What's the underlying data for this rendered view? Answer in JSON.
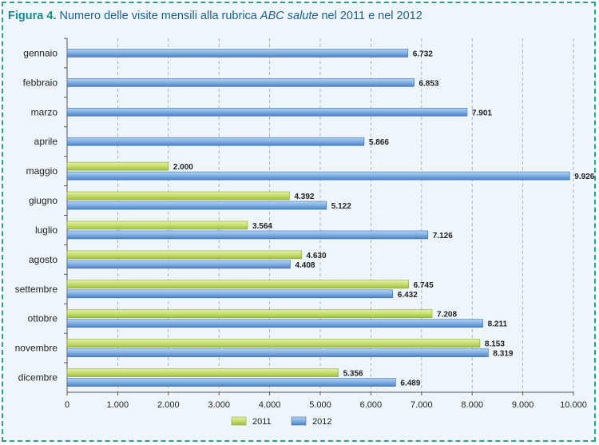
{
  "title": {
    "figure": "Figura 4.",
    "text_before": " Numero delle visite mensili alla rubrica ",
    "text_italic": "ABC salute",
    "text_after": " nel 2011 e nel 2012"
  },
  "colors": {
    "series_2011": "#c6dd6e",
    "series_2012": "#6f9fd8",
    "frame_border": "#2a9d8f",
    "title": "#1f5f8b"
  },
  "chart_data": {
    "type": "bar",
    "orientation": "horizontal",
    "categories": [
      "gennaio",
      "febbraio",
      "marzo",
      "aprile",
      "maggio",
      "giugno",
      "luglio",
      "agosto",
      "settembre",
      "ottobre",
      "novembre",
      "dicembre"
    ],
    "series": [
      {
        "name": "2011",
        "values": [
          null,
          null,
          null,
          null,
          2000,
          4392,
          3564,
          4630,
          6745,
          7208,
          8153,
          5356
        ],
        "labels": [
          "",
          "",
          "",
          "",
          "2.000",
          "4.392",
          "3.564",
          "4.630",
          "6.745",
          "7.208",
          "8.153",
          "5.356"
        ]
      },
      {
        "name": "2012",
        "values": [
          6732,
          6853,
          7901,
          5866,
          9926,
          5122,
          7126,
          4408,
          6432,
          8211,
          8319,
          6489
        ],
        "labels": [
          "6.732",
          "6.853",
          "7.901",
          "5.866",
          "9.926",
          "5.122",
          "7.126",
          "4.408",
          "6.432",
          "8.211",
          "8.319",
          "6.489"
        ]
      }
    ],
    "xlim": [
      0,
      10000
    ],
    "ticks": [
      0,
      1000,
      2000,
      3000,
      4000,
      5000,
      6000,
      7000,
      8000,
      9000,
      10000
    ],
    "tick_labels": [
      "0",
      "1.000",
      "2.000",
      "3.000",
      "4.000",
      "5.000",
      "6.000",
      "7.000",
      "8.000",
      "9.000",
      "10.000"
    ],
    "grid": "vertical dashed",
    "legend": "bottom-center"
  }
}
